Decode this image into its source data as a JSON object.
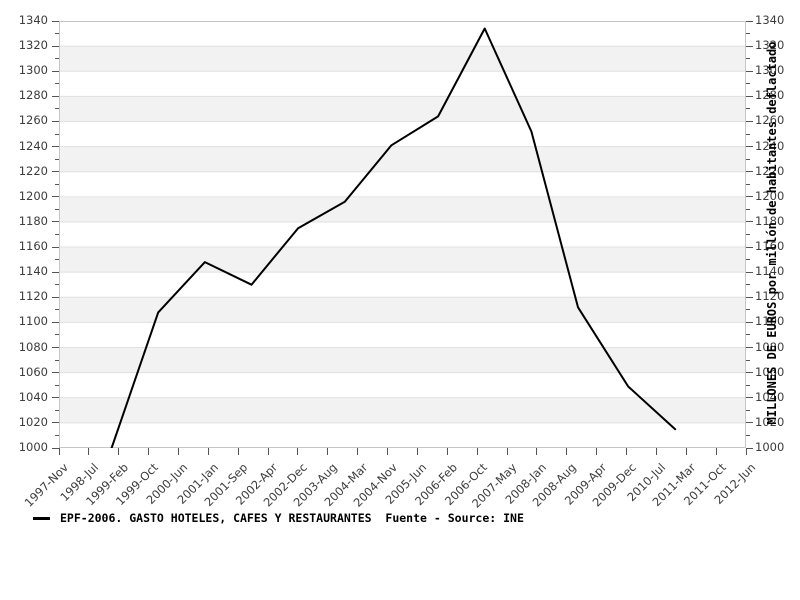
{
  "chart_data": {
    "type": "line",
    "title": "",
    "legend": "EPF-2006. GASTO HOTELES, CAFES Y RESTAURANTES  Fuente - Source: INE",
    "ylabel_right": "MILLONES DE EUROS por millón de habitantes deflactado",
    "ylim": [
      1000,
      1340
    ],
    "y_major_step": 20,
    "y_minor_step": 10,
    "grid": true,
    "band_colors": {
      "light": "#ffffff",
      "shaded": "#f2f2f2"
    },
    "gridline_color": "#e0e0e0",
    "spine_color": "#c6c6c6",
    "legend_position": "bottom-left",
    "y_tick_labels": [
      1000,
      1020,
      1040,
      1060,
      1080,
      1100,
      1120,
      1140,
      1160,
      1180,
      1200,
      1220,
      1240,
      1260,
      1280,
      1300,
      1320,
      1340
    ],
    "x_tick_labels": [
      "1997-Nov",
      "1998-Jul",
      "1999-Feb",
      "1999-Oct",
      "2000-Jun",
      "2001-Jan",
      "2001-Sep",
      "2002-Apr",
      "2002-Dec",
      "2003-Aug",
      "2004-Mar",
      "2004-Nov",
      "2005-Jun",
      "2006-Feb",
      "2006-Oct",
      "2007-May",
      "2008-Jan",
      "2008-Aug",
      "2009-Apr",
      "2009-Dec",
      "2010-Jul",
      "2011-Mar",
      "2011-Oct",
      "2012-Jun"
    ],
    "series": [
      {
        "name": "EPF-2006. GASTO HOTELES, CAFES Y RESTAURANTES",
        "color": "#000000",
        "line_width": 2,
        "points": [
          {
            "x_frac": 0.0765,
            "value": 1000
          },
          {
            "x_frac": 0.1444,
            "value": 1108
          },
          {
            "x_frac": 0.2123,
            "value": 1148
          },
          {
            "x_frac": 0.2802,
            "value": 1130
          },
          {
            "x_frac": 0.3481,
            "value": 1175
          },
          {
            "x_frac": 0.416,
            "value": 1196
          },
          {
            "x_frac": 0.4839,
            "value": 1241
          },
          {
            "x_frac": 0.5518,
            "value": 1264
          },
          {
            "x_frac": 0.6197,
            "value": 1334
          },
          {
            "x_frac": 0.6876,
            "value": 1252
          },
          {
            "x_frac": 0.7555,
            "value": 1112
          },
          {
            "x_frac": 0.8285,
            "value": 1049
          },
          {
            "x_frac": 0.897,
            "value": 1015
          }
        ]
      }
    ]
  }
}
